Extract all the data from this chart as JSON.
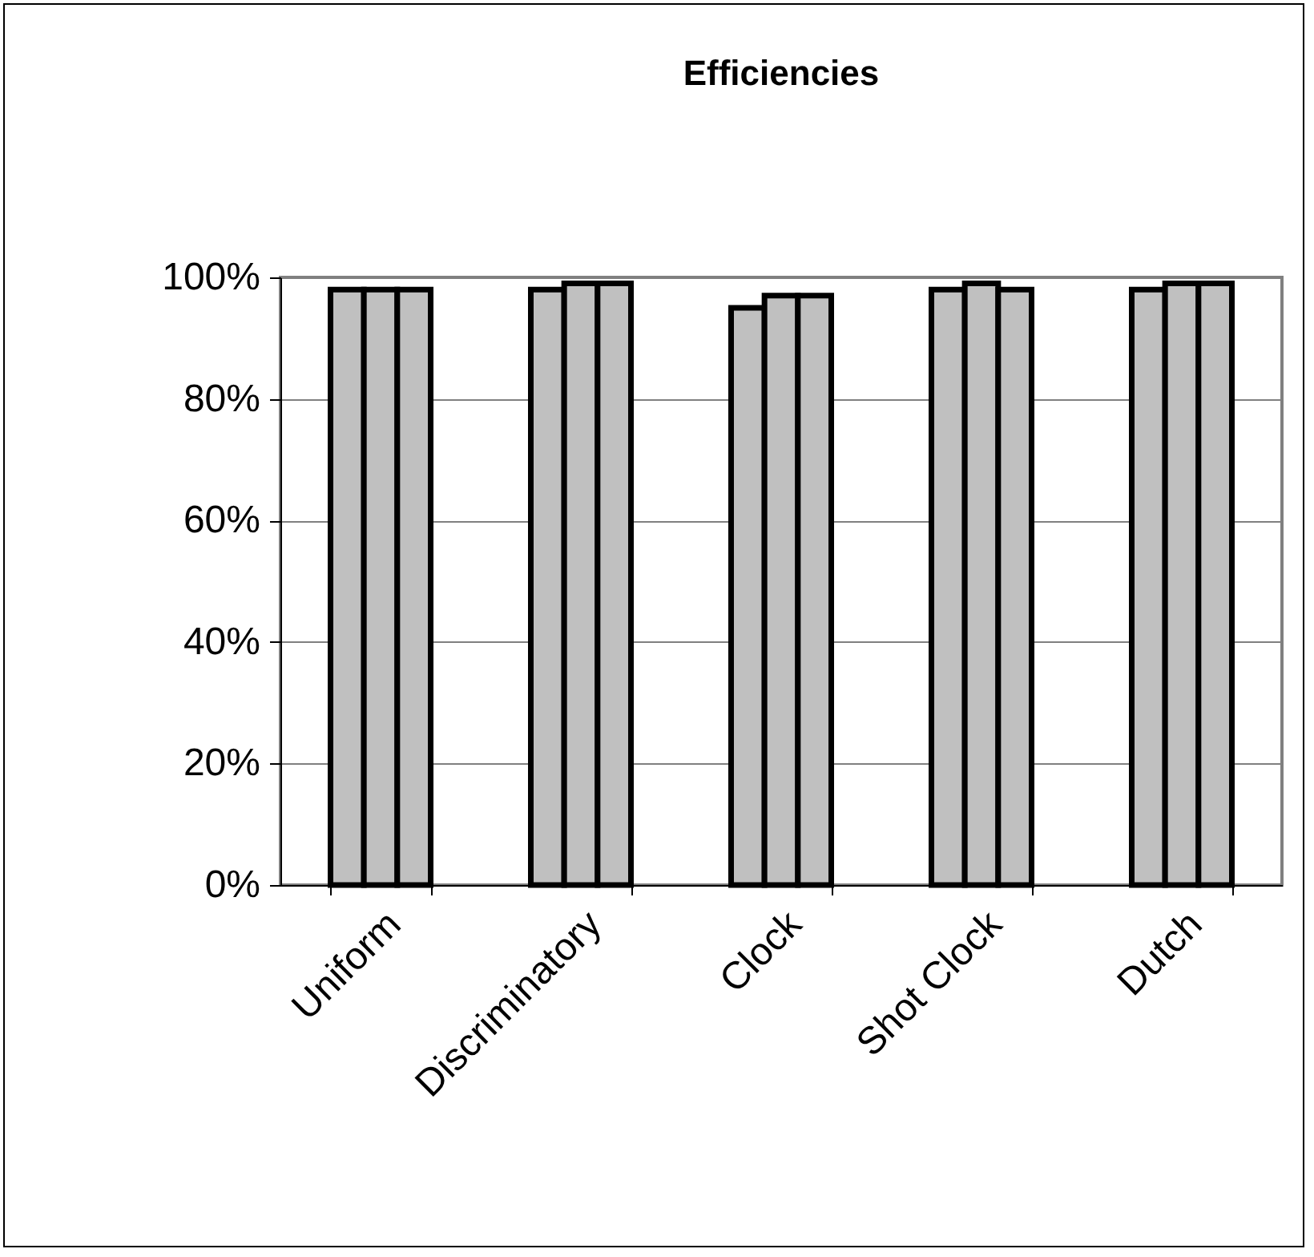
{
  "chart_data": {
    "type": "bar",
    "title": "Efficiencies",
    "categories": [
      "Uniform",
      "Discriminatory",
      "Clock",
      "Shot Clock",
      "Dutch"
    ],
    "series": [
      {
        "color": "#c0c0c0",
        "values": [
          98,
          98,
          95,
          98,
          98
        ]
      },
      {
        "color": "#c0c0c0",
        "values": [
          98,
          99,
          97,
          99,
          99
        ]
      },
      {
        "color": "#c0c0c0",
        "values": [
          98,
          99,
          97,
          98,
          99
        ]
      }
    ],
    "ylim": [
      0,
      100
    ],
    "yticks": [
      {
        "value": 0,
        "label": "0%"
      },
      {
        "value": 20,
        "label": "20%"
      },
      {
        "value": 40,
        "label": "40%"
      },
      {
        "value": 60,
        "label": "60%"
      },
      {
        "value": 80,
        "label": "80%"
      },
      {
        "value": 100,
        "label": "100%"
      }
    ],
    "grid": "y"
  }
}
